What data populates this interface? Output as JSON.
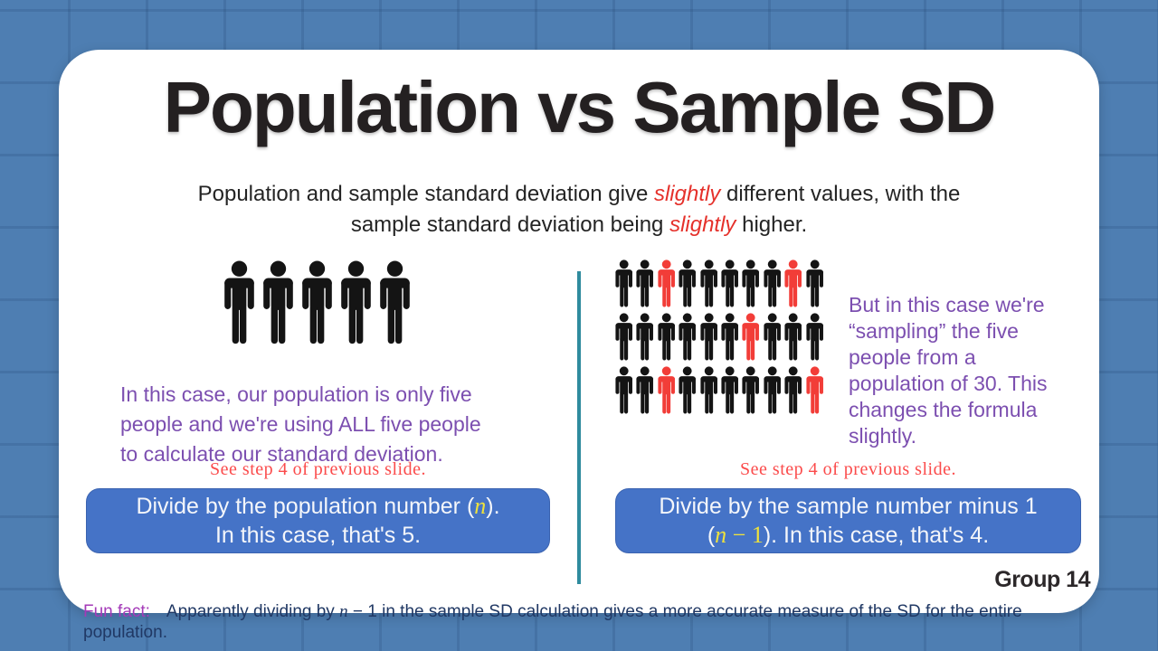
{
  "title": "Population vs Sample SD",
  "subtitle": {
    "line1a": "Population and sample standard deviation give ",
    "line1_em": "slightly",
    "line1b": " different values, with the",
    "line2a": "sample standard deviation being ",
    "line2_em": "slightly",
    "line2b": " higher."
  },
  "left": {
    "description_lines": [
      "In this case, our population is only five",
      "people and we're using ALL five people",
      "to calculate our standard deviation."
    ],
    "note": "See step 4 of previous slide.",
    "box": {
      "line1_pre": "Divide by the population number (",
      "line1_math": "n",
      "line1_post": ").",
      "line2": "In this case, that's 5."
    }
  },
  "right": {
    "description_lines": [
      "But in this case we're",
      "“sampling” the five",
      "people from a",
      "population of 30. This",
      "changes the formula",
      "slightly."
    ],
    "note": "See step 4 of previous slide.",
    "box": {
      "line1": "Divide by the sample number minus 1",
      "line2_open": "(",
      "line2_math_n": "n",
      "line2_math_rest": " − 1",
      "line2_close": "). In this case, that's 4."
    }
  },
  "funfact": {
    "label": "Fun fact:",
    "pre": "Apparently dividing by ",
    "math_n": "n",
    "math_rest": " − 1",
    "post": " in the sample SD calculation gives a more accurate measure of the SD for the entire population."
  },
  "group_label": "Group 14",
  "people": {
    "left_count": 5,
    "right_grid": [
      "0010000010",
      "0000001000",
      "0010000001"
    ]
  },
  "colors": {
    "background": "#4e7eb2",
    "card": "#ffffff",
    "title_text": "#242021",
    "body_text": "#242424",
    "emphasis_red": "#e5312b",
    "purple_text": "#7c4fb0",
    "note_red": "#fb4b4b",
    "box_blue": "#4573c7",
    "box_text": "#f4f6fa",
    "math_yellow": "#efe23b",
    "divider_teal": "#2f8b9e",
    "person_black": "#141414",
    "person_red": "#f23d38",
    "funfact_label_purple": "#a43ab8",
    "funfact_navy": "#203864",
    "group_text": "#2c282a"
  }
}
